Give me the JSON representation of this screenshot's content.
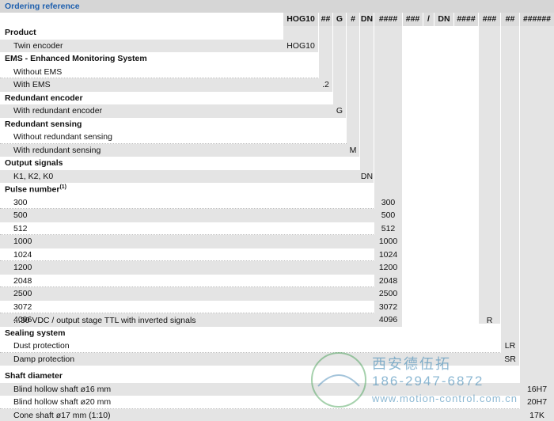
{
  "header": {
    "title": "Ordering reference"
  },
  "codes": [
    "HOG10",
    "##",
    "G",
    "#",
    "DN",
    "####",
    "###",
    "/",
    "DN",
    "####",
    "###",
    "##",
    "######"
  ],
  "sections": [
    {
      "title": "Product",
      "items": [
        {
          "label": "Twin encoder",
          "code": "HOG10"
        }
      ]
    },
    {
      "title": "EMS - Enhanced Monitoring System",
      "items": [
        {
          "label": "Without EMS"
        },
        {
          "label": "With EMS",
          "code": ".2"
        }
      ]
    },
    {
      "title": "Redundant encoder",
      "items": [
        {
          "label": "With redundant encoder",
          "code": "G"
        }
      ]
    },
    {
      "title": "Redundant sensing",
      "items": [
        {
          "label": "Without redundant sensing"
        },
        {
          "label": "With redundant sensing",
          "code": "M"
        }
      ]
    },
    {
      "title": "Output signals",
      "items": [
        {
          "label": "K1, K2, K0",
          "code": "DN"
        }
      ]
    },
    {
      "title": "Pulse number",
      "note": "(1)",
      "items": [
        {
          "label": "300",
          "code": "300"
        },
        {
          "label": "500",
          "code": "500"
        },
        {
          "label": "512",
          "code": "512"
        },
        {
          "label": "1000",
          "code": "1000"
        },
        {
          "label": "1024",
          "code": "1024"
        },
        {
          "label": "1200",
          "code": "1200"
        },
        {
          "label": "2048",
          "code": "2048"
        },
        {
          "label": "2500",
          "code": "2500"
        },
        {
          "label": "3072",
          "code": "3072"
        },
        {
          "label": "4096",
          "code": "4096"
        }
      ]
    },
    {
      "items": [
        {
          "label": "...30 VDC / output stage TTL with inverted signals",
          "code": "R"
        }
      ]
    },
    {
      "title": "Sealing system",
      "items": [
        {
          "label": "Dust protection",
          "code": "LR"
        },
        {
          "label": "Damp protection",
          "code": "SR"
        }
      ]
    },
    {
      "title": "Shaft diameter",
      "items": [
        {
          "label": "Blind hollow shaft ø16 mm",
          "code": "16H7"
        },
        {
          "label": "Blind hollow shaft ø20 mm",
          "code": "20H7"
        },
        {
          "label": "Cone shaft ø17 mm (1:10)",
          "code": "17K"
        }
      ]
    }
  ],
  "watermark": {
    "company": "西安德伍拓",
    "phone": "186-2947-6872",
    "website": "www.motion-control.com.cn"
  }
}
